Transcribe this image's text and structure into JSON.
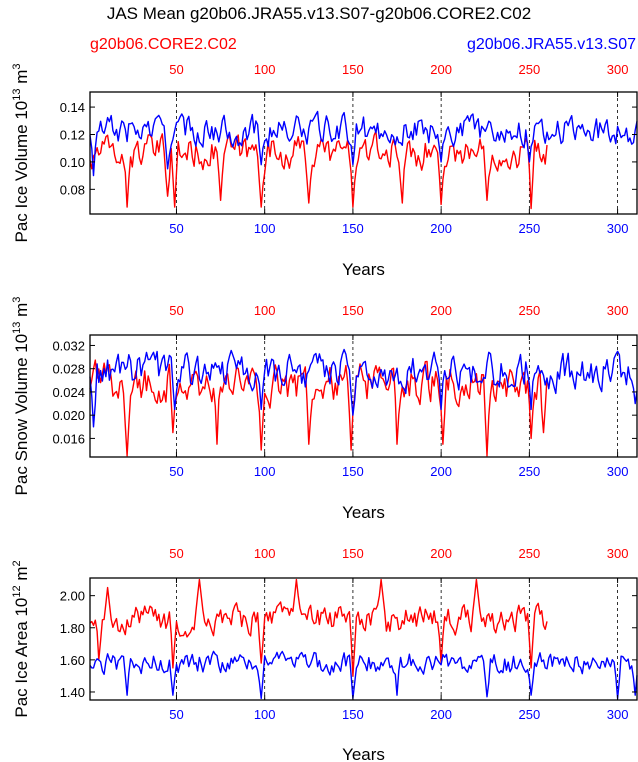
{
  "figure": {
    "title": "JAS Mean g20b06.JRA55.v13.S07-g20b06.CORE2.C02",
    "legend_red": "g20b06.CORE2.C02",
    "legend_blue": "g20b06.JRA55.v13.S07",
    "color_red": "#ff0000",
    "color_blue": "#0000ff"
  },
  "chart_data": [
    {
      "type": "line",
      "ylabel": "Pac Ice Volume 10",
      "ylabel_exp": "13",
      "ylabel_unit": " m",
      "ylabel_unit_exp": "3",
      "xlabel": "Years",
      "xlim": [
        1,
        311
      ],
      "ylim": [
        0.062,
        0.151
      ],
      "yticks": [
        0.08,
        0.1,
        0.12,
        0.14
      ],
      "ytick_labels": [
        "0.08",
        "0.10",
        "0.12",
        "0.14"
      ],
      "xticks_bottom": [
        50,
        100,
        150,
        200,
        250,
        300
      ],
      "xticks_bottom_labels": [
        "50",
        "100",
        "150",
        "200",
        "250",
        "300"
      ],
      "xticks_top": [
        50,
        100,
        150,
        200,
        250,
        300
      ],
      "xticks_top_labels": [
        "50",
        "100",
        "150",
        "200",
        "250",
        "300"
      ],
      "series": [
        {
          "name": "g20b06.CORE2.C02",
          "color": "#ff0000",
          "x_start": 1,
          "x_end": 260,
          "base": 0.107,
          "amplitude": 0.012,
          "dips": [
            [
              2,
              0.095
            ],
            [
              22,
              0.067
            ],
            [
              45,
              0.075
            ],
            [
              49,
              0.067
            ],
            [
              75,
              0.072
            ],
            [
              98,
              0.067
            ],
            [
              125,
              0.07
            ],
            [
              150,
              0.067
            ],
            [
              178,
              0.07
            ],
            [
              200,
              0.069
            ],
            [
              226,
              0.072
            ],
            [
              251,
              0.066
            ]
          ]
        },
        {
          "name": "g20b06.JRA55.v13.S07",
          "color": "#0000ff",
          "x_start": 1,
          "x_end": 311,
          "base": 0.123,
          "amplitude": 0.011,
          "dips": [
            [
              3,
              0.09
            ],
            [
              45,
              0.095
            ],
            [
              98,
              0.098
            ],
            [
              150,
              0.098
            ],
            [
              200,
              0.1
            ],
            [
              250,
              0.1
            ]
          ]
        }
      ]
    },
    {
      "type": "line",
      "ylabel": "Pac Snow Volume 10",
      "ylabel_exp": "13",
      "ylabel_unit": " m",
      "ylabel_unit_exp": "3",
      "xlabel": "Years",
      "xlim": [
        1,
        311
      ],
      "ylim": [
        0.0128,
        0.0338
      ],
      "yticks": [
        0.016,
        0.02,
        0.024,
        0.028,
        0.032
      ],
      "ytick_labels": [
        "0.016",
        "0.020",
        "0.024",
        "0.028",
        "0.032"
      ],
      "xticks_bottom": [
        50,
        100,
        150,
        200,
        250,
        300
      ],
      "xticks_bottom_labels": [
        "50",
        "100",
        "150",
        "200",
        "250",
        "300"
      ],
      "xticks_top": [
        50,
        100,
        150,
        200,
        250,
        300
      ],
      "xticks_top_labels": [
        "50",
        "100",
        "150",
        "200",
        "250",
        "300"
      ],
      "series": [
        {
          "name": "g20b06.CORE2.C02",
          "color": "#ff0000",
          "x_start": 1,
          "x_end": 260,
          "base": 0.0255,
          "amplitude": 0.0035,
          "dips": [
            [
              22,
              0.013
            ],
            [
              48,
              0.017
            ],
            [
              73,
              0.015
            ],
            [
              98,
              0.014
            ],
            [
              125,
              0.015
            ],
            [
              149,
              0.014
            ],
            [
              175,
              0.015
            ],
            [
              201,
              0.015
            ],
            [
              226,
              0.013
            ],
            [
              251,
              0.016
            ],
            [
              258,
              0.017
            ]
          ]
        },
        {
          "name": "g20b06.JRA55.v13.S07",
          "color": "#0000ff",
          "x_start": 1,
          "x_end": 311,
          "base": 0.0275,
          "amplitude": 0.0032,
          "dips": [
            [
              3,
              0.018
            ],
            [
              49,
              0.021
            ],
            [
              98,
              0.021
            ],
            [
              150,
              0.02
            ],
            [
              200,
              0.021
            ],
            [
              251,
              0.021
            ],
            [
              310,
              0.022
            ]
          ]
        }
      ]
    },
    {
      "type": "line",
      "ylabel": "Pac Ice Area 10",
      "ylabel_exp": "12",
      "ylabel_unit": " m",
      "ylabel_unit_exp": "2",
      "xlabel": "Years",
      "xlim": [
        1,
        311
      ],
      "ylim": [
        1.35,
        2.11
      ],
      "yticks": [
        1.4,
        1.6,
        1.8,
        2.0
      ],
      "ytick_labels": [
        "1.40",
        "1.60",
        "1.80",
        "2.00"
      ],
      "xticks_bottom": [
        50,
        100,
        150,
        200,
        250,
        300
      ],
      "xticks_bottom_labels": [
        "50",
        "100",
        "150",
        "200",
        "250",
        "300"
      ],
      "xticks_top": [
        50,
        100,
        150,
        200,
        250,
        300
      ],
      "xticks_top_labels": [
        "50",
        "100",
        "150",
        "200",
        "250",
        "300"
      ],
      "series": [
        {
          "name": "g20b06.CORE2.C02",
          "color": "#ff0000",
          "x_start": 1,
          "x_end": 260,
          "base": 1.85,
          "amplitude": 0.09,
          "peaks": [
            [
              11,
              2.05
            ],
            [
              63,
              2.1
            ],
            [
              118,
              2.1
            ],
            [
              166,
              2.1
            ],
            [
              220,
              2.1
            ]
          ],
          "dips": [
            [
              6,
              1.6
            ],
            [
              48,
              1.55
            ],
            [
              98,
              1.58
            ],
            [
              150,
              1.5
            ],
            [
              200,
              1.58
            ],
            [
              251,
              1.55
            ]
          ]
        },
        {
          "name": "g20b06.JRA55.v13.S07",
          "color": "#0000ff",
          "x_start": 1,
          "x_end": 311,
          "base": 1.58,
          "amplitude": 0.07,
          "dips": [
            [
              3,
              1.55
            ],
            [
              22,
              1.38
            ],
            [
              48,
              1.38
            ],
            [
              98,
              1.36
            ],
            [
              150,
              1.36
            ],
            [
              175,
              1.38
            ],
            [
              226,
              1.37
            ],
            [
              251,
              1.38
            ],
            [
              300,
              1.36
            ],
            [
              310,
              1.38
            ]
          ]
        }
      ]
    }
  ]
}
